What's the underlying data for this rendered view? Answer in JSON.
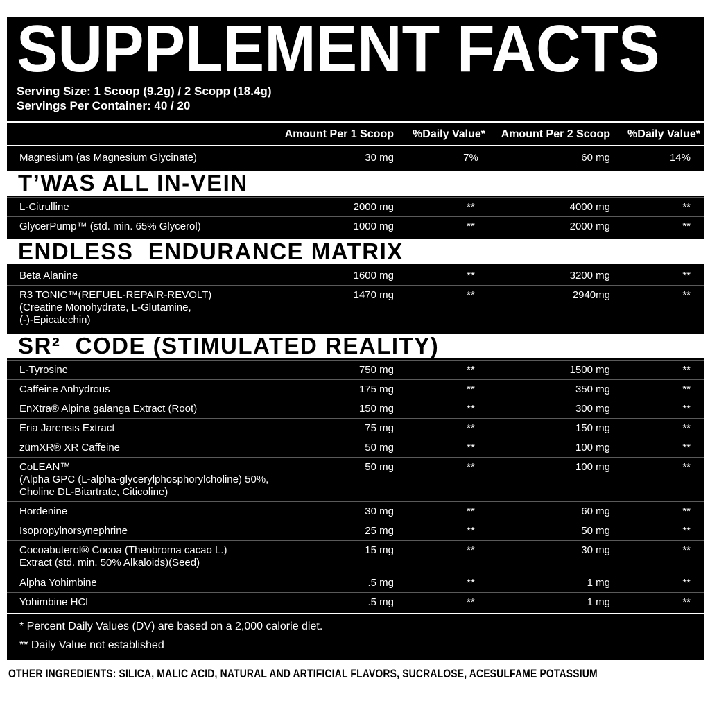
{
  "title": "SUPPLEMENT FACTS",
  "serving_size": "Serving Size: 1 Scoop (9.2g) / 2 Scopp (18.4g)",
  "servings_per_container": "Servings Per Container: 40 / 20",
  "headers": [
    "Amount Per 1 Scoop",
    "%Daily Value*",
    "Amount Per 2 Scoop",
    "%Daily Value*"
  ],
  "magnesium": {
    "name": "Magnesium (as Magnesium Glycinate)",
    "a1": "30 mg",
    "d1": "7%",
    "a2": "60 mg",
    "d2": "14%"
  },
  "sections": [
    {
      "title": "T’WAS ALL IN-VEIN",
      "rows": [
        {
          "name": "L-Citrulline",
          "a1": "2000 mg",
          "d1": "**",
          "a2": "4000 mg",
          "d2": "**"
        },
        {
          "name": "GlycerPump™ (std. min. 65% Glycerol)",
          "a1": "1000 mg",
          "d1": "**",
          "a2": "2000 mg",
          "d2": "**"
        }
      ]
    },
    {
      "title": "ENDLESS  ENDURANCE MATRIX",
      "rows": [
        {
          "name": "Beta Alanine",
          "a1": "1600 mg",
          "d1": "**",
          "a2": "3200 mg",
          "d2": "**"
        },
        {
          "name": "R3 TONIC™(REFUEL-REPAIR-REVOLT)\n(Creatine Monohydrate, L-Glutamine,\n(-)-Epicatechin)",
          "a1": "1470 mg",
          "d1": "**",
          "a2": "2940mg",
          "d2": "**"
        }
      ]
    },
    {
      "title": "SR²  CODE (STIMULATED REALITY)",
      "rows": [
        {
          "name": "L-Tyrosine",
          "a1": "750 mg",
          "d1": "**",
          "a2": "1500 mg",
          "d2": "**"
        },
        {
          "name": "Caffeine Anhydrous",
          "a1": "175 mg",
          "d1": "**",
          "a2": "350 mg",
          "d2": "**"
        },
        {
          "name": "EnXtra® Alpina galanga Extract (Root)",
          "a1": "150 mg",
          "d1": "**",
          "a2": "300 mg",
          "d2": "**"
        },
        {
          "name": "Eria Jarensis Extract",
          "a1": "75 mg",
          "d1": "**",
          "a2": "150 mg",
          "d2": "**"
        },
        {
          "name": "zümXR® XR Caffeine",
          "a1": "50 mg",
          "d1": "**",
          "a2": "100 mg",
          "d2": "**"
        },
        {
          "name": "CoLEAN™\n(Alpha GPC (L-alpha-glycerylphosphorylcholine) 50%,\nCholine DL-Bitartrate, Citicoline)",
          "a1": "50 mg",
          "d1": "**",
          "a2": "100 mg",
          "d2": "**"
        },
        {
          "name": "Hordenine",
          "a1": "30 mg",
          "d1": "**",
          "a2": "60 mg",
          "d2": "**"
        },
        {
          "name": "Isopropylnorsynephrine",
          "a1": "25 mg",
          "d1": "**",
          "a2": "50 mg",
          "d2": "**"
        },
        {
          "name": "Cocoabuterol® Cocoa (Theobroma cacao L.)\nExtract (std. min. 50% Alkaloids)(Seed)",
          "a1": "15 mg",
          "d1": "**",
          "a2": "30 mg",
          "d2": "**"
        },
        {
          "name": "Alpha Yohimbine",
          "a1": ".5 mg",
          "d1": "**",
          "a2": "1 mg",
          "d2": "**"
        },
        {
          "name": "Yohimbine HCl",
          "a1": ".5 mg",
          "d1": "**",
          "a2": "1 mg",
          "d2": "**"
        }
      ]
    }
  ],
  "footnotes": [
    "* Percent Daily Values (DV) are based on a 2,000 calorie diet.",
    "** Daily Value not established"
  ],
  "other_ingredients": "OTHER INGREDIENTS: SILICA, MALIC ACID, NATURAL AND ARTIFICIAL FLAVORS, SUCRALOSE, ACESULFAME POTASSIUM"
}
